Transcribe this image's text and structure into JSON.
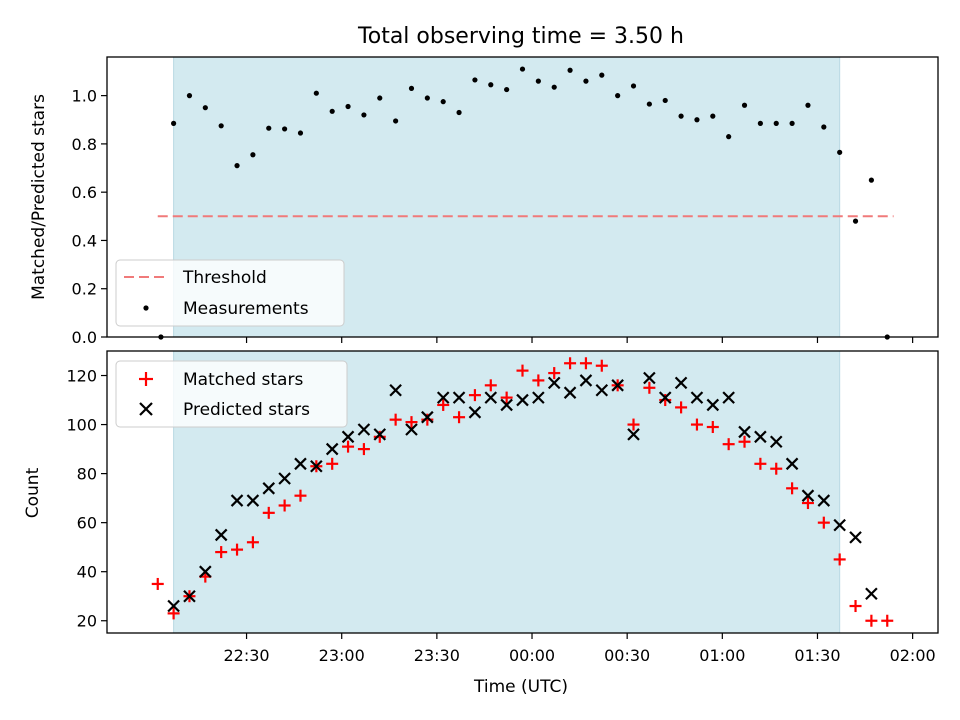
{
  "title": "Total observing time = 3.50 h",
  "chart_data": [
    {
      "type": "scatter",
      "ylabel": "Matched/Predicted stars",
      "ylim": [
        0,
        1.16
      ],
      "yticks": [
        "0.0",
        "0.2",
        "0.4",
        "0.6",
        "0.8",
        "1.0"
      ],
      "xlim_minutes_from_2200": [
        8,
        135
      ],
      "shaded_span_minutes_from_2200": [
        18.5,
        123.5
      ],
      "shade_color": "#d3eaf0",
      "threshold": {
        "name": "Threshold",
        "value": 0.5,
        "x_range_minutes_from_2200": [
          16,
          124
        ],
        "color": "#f07a7a"
      },
      "legend": [
        "Threshold",
        "Measurements"
      ],
      "legend_position": "lower left",
      "series": [
        {
          "name": "Measurements",
          "color": "#000000",
          "points": [
            [
              16.5,
              0.0
            ],
            [
              18.5,
              0.885
            ],
            [
              21,
              1.0
            ],
            [
              23.5,
              0.95
            ],
            [
              26,
              0.875
            ],
            [
              28.5,
              0.71
            ],
            [
              31,
              0.755
            ],
            [
              33.5,
              0.865
            ],
            [
              36,
              0.862
            ],
            [
              38.5,
              0.845
            ],
            [
              41,
              1.01
            ],
            [
              43.5,
              0.935
            ],
            [
              46,
              0.955
            ],
            [
              48.5,
              0.92
            ],
            [
              51,
              0.99
            ],
            [
              53.5,
              0.895
            ],
            [
              56,
              1.03
            ],
            [
              58.5,
              0.99
            ],
            [
              61,
              0.975
            ],
            [
              63.5,
              0.93
            ],
            [
              66,
              1.065
            ],
            [
              68.5,
              1.045
            ],
            [
              71,
              1.025
            ],
            [
              73.5,
              1.11
            ],
            [
              76,
              1.06
            ],
            [
              78.5,
              1.035
            ],
            [
              81,
              1.105
            ],
            [
              83.5,
              1.06
            ],
            [
              86,
              1.085
            ],
            [
              88.5,
              1.0
            ],
            [
              91,
              1.04
            ],
            [
              93.5,
              0.965
            ],
            [
              96,
              0.98
            ],
            [
              98.5,
              0.915
            ],
            [
              101,
              0.9
            ],
            [
              103.5,
              0.915
            ],
            [
              106,
              0.83
            ],
            [
              108.5,
              0.96
            ],
            [
              111,
              0.885
            ],
            [
              113.5,
              0.885
            ],
            [
              116,
              0.885
            ],
            [
              118.5,
              0.96
            ],
            [
              121,
              0.87
            ],
            [
              123.5,
              0.765
            ],
            [
              126,
              0.48
            ],
            [
              128.5,
              0.65
            ],
            [
              131,
              0.0
            ]
          ]
        }
      ]
    },
    {
      "type": "scatter",
      "ylabel": "Count",
      "xlabel": "Time (UTC)",
      "ylim": [
        15,
        130
      ],
      "yticks": [
        "20",
        "40",
        "60",
        "80",
        "100",
        "120"
      ],
      "xlim_minutes_from_2200": [
        8,
        135
      ],
      "xticks": [
        {
          "value": 30,
          "label": "22:30"
        },
        {
          "value": 45,
          "label": "23:00"
        },
        {
          "value": 60,
          "label": "23:30"
        },
        {
          "value": 75,
          "label": "00:00"
        },
        {
          "value": 90,
          "label": "00:30"
        },
        {
          "value": 105,
          "label": "01:00"
        },
        {
          "value": 120,
          "label": "01:30"
        },
        {
          "value": 135,
          "label": "02:00"
        }
      ],
      "shaded_span_minutes_from_2200": [
        18.5,
        123.5
      ],
      "legend": [
        "Matched stars",
        "Predicted stars"
      ],
      "legend_position": "upper left",
      "series": [
        {
          "name": "Matched stars",
          "marker": "+",
          "color": "#ff0000",
          "points": [
            [
              16,
              35
            ],
            [
              18.5,
              23
            ],
            [
              21,
              30
            ],
            [
              23.5,
              38
            ],
            [
              26,
              48
            ],
            [
              28.5,
              49
            ],
            [
              31,
              52
            ],
            [
              33.5,
              64
            ],
            [
              36,
              67
            ],
            [
              38.5,
              71
            ],
            [
              41,
              83
            ],
            [
              43.5,
              84
            ],
            [
              46,
              91
            ],
            [
              48.5,
              90
            ],
            [
              51,
              95
            ],
            [
              53.5,
              102
            ],
            [
              56,
              101
            ],
            [
              58.5,
              102
            ],
            [
              61,
              108
            ],
            [
              63.5,
              103
            ],
            [
              66,
              112
            ],
            [
              68.5,
              116
            ],
            [
              71,
              111
            ],
            [
              73.5,
              122
            ],
            [
              76,
              118
            ],
            [
              78.5,
              121
            ],
            [
              81,
              125
            ],
            [
              83.5,
              125
            ],
            [
              86,
              124
            ],
            [
              88.5,
              116
            ],
            [
              91,
              100
            ],
            [
              93.5,
              115
            ],
            [
              96,
              110
            ],
            [
              98.5,
              107
            ],
            [
              101,
              100
            ],
            [
              103.5,
              99
            ],
            [
              106,
              92
            ],
            [
              108.5,
              93
            ],
            [
              111,
              84
            ],
            [
              113.5,
              82
            ],
            [
              116,
              74
            ],
            [
              118.5,
              68
            ],
            [
              121,
              60
            ],
            [
              123.5,
              45
            ],
            [
              126,
              26
            ],
            [
              128.5,
              20
            ],
            [
              131,
              20
            ]
          ]
        },
        {
          "name": "Predicted stars",
          "marker": "x",
          "color": "#000000",
          "points": [
            [
              18.5,
              26
            ],
            [
              21,
              30
            ],
            [
              23.5,
              40
            ],
            [
              26,
              55
            ],
            [
              28.5,
              69
            ],
            [
              31,
              69
            ],
            [
              33.5,
              74
            ],
            [
              36,
              78
            ],
            [
              38.5,
              84
            ],
            [
              41,
              83
            ],
            [
              43.5,
              90
            ],
            [
              46,
              95
            ],
            [
              48.5,
              98
            ],
            [
              51,
              96
            ],
            [
              53.5,
              114
            ],
            [
              56,
              98
            ],
            [
              58.5,
              103
            ],
            [
              61,
              111
            ],
            [
              63.5,
              111
            ],
            [
              66,
              105
            ],
            [
              68.5,
              111
            ],
            [
              71,
              108
            ],
            [
              73.5,
              110
            ],
            [
              76,
              111
            ],
            [
              78.5,
              117
            ],
            [
              81,
              113
            ],
            [
              83.5,
              118
            ],
            [
              86,
              114
            ],
            [
              88.5,
              116
            ],
            [
              91,
              96
            ],
            [
              93.5,
              119
            ],
            [
              96,
              111
            ],
            [
              98.5,
              117
            ],
            [
              101,
              111
            ],
            [
              103.5,
              108
            ],
            [
              106,
              111
            ],
            [
              108.5,
              97
            ],
            [
              111,
              95
            ],
            [
              113.5,
              93
            ],
            [
              116,
              84
            ],
            [
              118.5,
              71
            ],
            [
              121,
              69
            ],
            [
              123.5,
              59
            ],
            [
              126,
              54
            ],
            [
              128.5,
              31
            ]
          ]
        }
      ]
    }
  ]
}
